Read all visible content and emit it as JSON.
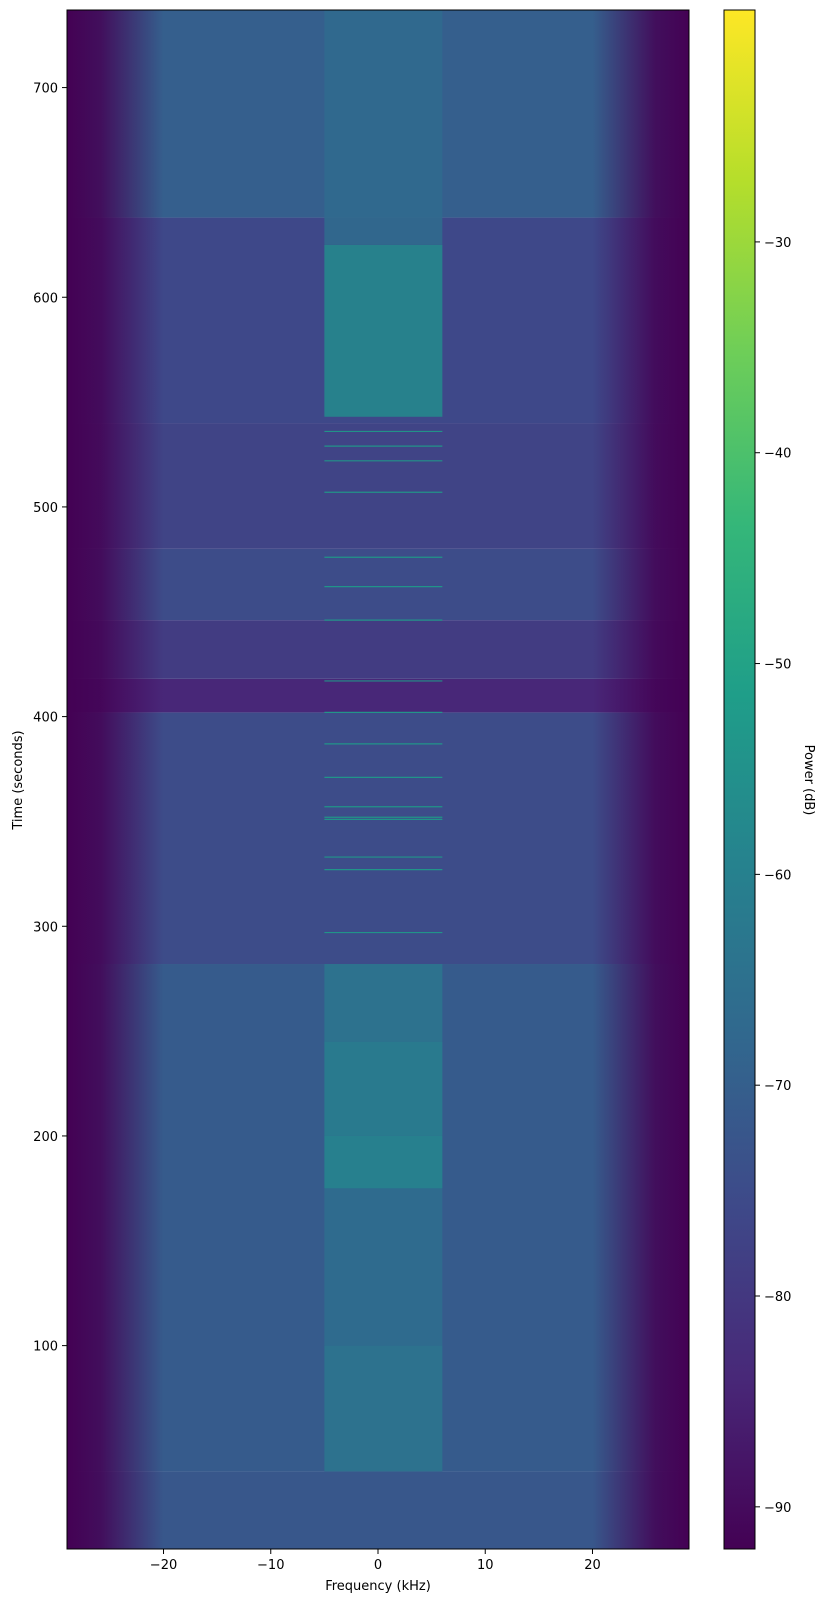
{
  "chart_data": {
    "type": "heatmap",
    "title": "",
    "xlabel": "Frequency (kHz)",
    "ylabel": "Time (seconds)",
    "colorbar_label": "Power (dB)",
    "xlim": [
      -29,
      29
    ],
    "ylim": [
      3,
      737
    ],
    "x_ticks": [
      -20,
      -10,
      0,
      10,
      20
    ],
    "x_tick_labels": [
      "−20",
      "−10",
      "0",
      "10",
      "20"
    ],
    "y_ticks": [
      100,
      200,
      300,
      400,
      500,
      600,
      700
    ],
    "y_tick_labels": [
      "100",
      "200",
      "300",
      "400",
      "500",
      "600",
      "700"
    ],
    "colorbar_range": [
      -92,
      -19
    ],
    "colorbar_ticks": [
      -90,
      -80,
      -70,
      -60,
      -50,
      -40,
      -30
    ],
    "colorbar_tick_labels": [
      "−90",
      "−80",
      "−70",
      "−60",
      "−50",
      "−40",
      "−30"
    ],
    "colormap": "viridis",
    "colormap_stops": [
      "#440154",
      "#482878",
      "#3e4989",
      "#31688e",
      "#26828e",
      "#1f9e89",
      "#35b779",
      "#6ece58",
      "#b5de2b",
      "#fde725"
    ],
    "grid": false,
    "background_power_by_time": [
      {
        "t": [
          3,
          40
        ],
        "power": -72
      },
      {
        "t": [
          40,
          282
        ],
        "power": -71
      },
      {
        "t": [
          282,
          402
        ],
        "power": -75
      },
      {
        "t": [
          402,
          418
        ],
        "power": -84
      },
      {
        "t": [
          418,
          446
        ],
        "power": -79
      },
      {
        "t": [
          446,
          480
        ],
        "power": -75
      },
      {
        "t": [
          480,
          540
        ],
        "power": -77
      },
      {
        "t": [
          540,
          638
        ],
        "power": -76
      },
      {
        "t": [
          638,
          737
        ],
        "power": -70
      }
    ],
    "edge_rolloff_power": -92,
    "signal_band": {
      "freq_range": [
        -5,
        6
      ],
      "unit": "kHz"
    },
    "signal_power_by_time": [
      {
        "t": [
          40,
          100
        ],
        "power": -64
      },
      {
        "t": [
          100,
          175
        ],
        "power": -66
      },
      {
        "t": [
          175,
          200
        ],
        "power": -59
      },
      {
        "t": [
          200,
          245
        ],
        "power": -61
      },
      {
        "t": [
          245,
          282
        ],
        "power": -64
      },
      {
        "t": [
          543,
          625
        ],
        "power": -58
      },
      {
        "t": [
          625,
          737
        ],
        "power": -67
      }
    ],
    "narrow_bursts_seconds": [
      297,
      327,
      333,
      351,
      352,
      357,
      371,
      387,
      402,
      417,
      446,
      462,
      476,
      507,
      522,
      529,
      536
    ]
  }
}
